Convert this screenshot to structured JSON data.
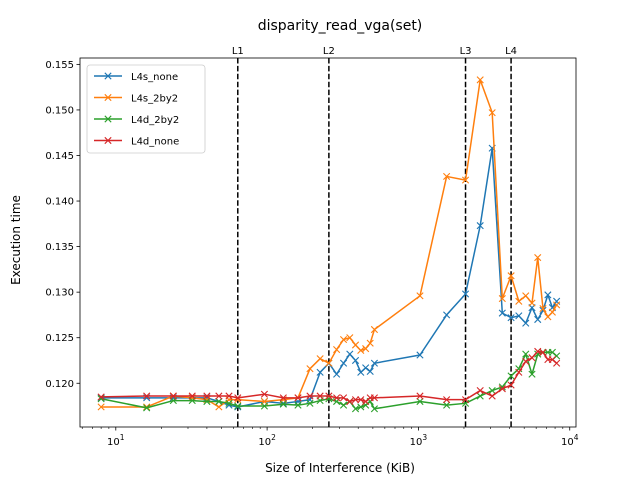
{
  "chart_data": {
    "type": "line",
    "title": "disparity_read_vga(set)",
    "xlabel": "Size of Interference (KiB)",
    "ylabel": "Execution time",
    "xscale": "log",
    "xlim": [
      5.8,
      11000
    ],
    "ylim": [
      0.1152,
      0.1557
    ],
    "x_ticks": [
      {
        "value": 10,
        "base": "10",
        "exp": "1"
      },
      {
        "value": 100,
        "base": "10",
        "exp": "2"
      },
      {
        "value": 1000,
        "base": "10",
        "exp": "3"
      },
      {
        "value": 10000,
        "base": "10",
        "exp": "4"
      }
    ],
    "y_ticks": [
      {
        "value": 0.12,
        "label": "0.120"
      },
      {
        "value": 0.125,
        "label": "0.125"
      },
      {
        "value": 0.13,
        "label": "0.130"
      },
      {
        "value": 0.135,
        "label": "0.135"
      },
      {
        "value": 0.14,
        "label": "0.140"
      },
      {
        "value": 0.145,
        "label": "0.145"
      },
      {
        "value": 0.15,
        "label": "0.150"
      },
      {
        "value": 0.155,
        "label": "0.155"
      }
    ],
    "vlines": [
      {
        "label": "L1",
        "x": 64
      },
      {
        "label": "L2",
        "x": 256
      },
      {
        "label": "L3",
        "x": 2048
      },
      {
        "label": "L4",
        "x": 4096
      }
    ],
    "legend": "upper-left",
    "grid": false,
    "series": [
      {
        "name": "L4s_none",
        "color": "#1f77b4",
        "x": [
          8,
          16,
          24,
          32,
          40,
          48,
          56,
          64,
          96,
          128,
          160,
          192,
          224,
          256,
          288,
          320,
          352,
          384,
          416,
          448,
          480,
          512,
          1024,
          1536,
          2048,
          2560,
          3072,
          3584,
          4096,
          4608,
          5120,
          5632,
          6144,
          6656,
          7168,
          7680,
          8192
        ],
        "y": [
          0.1184,
          0.1184,
          0.1184,
          0.1184,
          0.1184,
          0.118,
          0.1176,
          0.1174,
          0.118,
          0.1178,
          0.118,
          0.1182,
          0.1212,
          0.1222,
          0.121,
          0.1222,
          0.1232,
          0.1225,
          0.1212,
          0.1217,
          0.1213,
          0.1222,
          0.1231,
          0.1275,
          0.1298,
          0.1373,
          0.1458,
          0.1277,
          0.1272,
          0.1274,
          0.1266,
          0.1283,
          0.127,
          0.128,
          0.1297,
          0.1283,
          0.129
        ]
      },
      {
        "name": "L4s_2by2",
        "color": "#ff7f0e",
        "x": [
          8,
          16,
          24,
          32,
          40,
          48,
          56,
          64,
          96,
          128,
          160,
          192,
          224,
          256,
          288,
          320,
          352,
          384,
          416,
          448,
          480,
          512,
          1024,
          1536,
          2048,
          2560,
          3072,
          3584,
          4096,
          4608,
          5120,
          5632,
          6144,
          6656,
          7168,
          7680,
          8192
        ],
        "y": [
          0.1174,
          0.1174,
          0.1186,
          0.1184,
          0.1182,
          0.1174,
          0.1182,
          0.1182,
          0.118,
          0.1182,
          0.1184,
          0.1216,
          0.1227,
          0.1222,
          0.1237,
          0.1248,
          0.125,
          0.1242,
          0.1236,
          0.1238,
          0.1244,
          0.1259,
          0.1296,
          0.1427,
          0.1423,
          0.1533,
          0.1497,
          0.1293,
          0.1318,
          0.129,
          0.1296,
          0.1288,
          0.1338,
          0.1282,
          0.1273,
          0.1278,
          0.1286
        ]
      },
      {
        "name": "L4d_2by2",
        "color": "#2ca02c",
        "x": [
          8,
          16,
          24,
          32,
          40,
          48,
          56,
          64,
          96,
          128,
          160,
          192,
          224,
          256,
          288,
          320,
          352,
          384,
          416,
          448,
          480,
          512,
          1024,
          1536,
          2048,
          2560,
          3072,
          3584,
          4096,
          4608,
          5120,
          5632,
          6144,
          6656,
          7168,
          7680,
          8192
        ],
        "y": [
          0.1183,
          0.1173,
          0.1181,
          0.1181,
          0.118,
          0.118,
          0.1178,
          0.1175,
          0.1175,
          0.1177,
          0.1176,
          0.1178,
          0.1181,
          0.1183,
          0.118,
          0.1176,
          0.118,
          0.1172,
          0.1174,
          0.1176,
          0.118,
          0.1172,
          0.118,
          0.1176,
          0.1178,
          0.1186,
          0.1192,
          0.1196,
          0.1208,
          0.1216,
          0.1232,
          0.121,
          0.1232,
          0.1234,
          0.1234,
          0.1234,
          0.123
        ]
      },
      {
        "name": "L4d_none",
        "color": "#d62728",
        "x": [
          8,
          16,
          24,
          32,
          40,
          48,
          56,
          64,
          96,
          128,
          160,
          192,
          224,
          256,
          288,
          320,
          352,
          384,
          416,
          448,
          480,
          512,
          1024,
          1536,
          2048,
          2560,
          3072,
          3584,
          4096,
          4608,
          5120,
          5632,
          6144,
          6656,
          7168,
          7680,
          8192
        ],
        "y": [
          0.1185,
          0.1186,
          0.1186,
          0.1186,
          0.1186,
          0.1186,
          0.1186,
          0.1184,
          0.1188,
          0.1184,
          0.1184,
          0.1186,
          0.1186,
          0.1186,
          0.1184,
          0.1184,
          0.118,
          0.1182,
          0.1182,
          0.118,
          0.1184,
          0.1184,
          0.1186,
          0.1182,
          0.1182,
          0.1192,
          0.1186,
          0.1194,
          0.1198,
          0.1212,
          0.1224,
          0.1228,
          0.1235,
          0.1234,
          0.1226,
          0.1226,
          0.1222
        ]
      }
    ]
  }
}
